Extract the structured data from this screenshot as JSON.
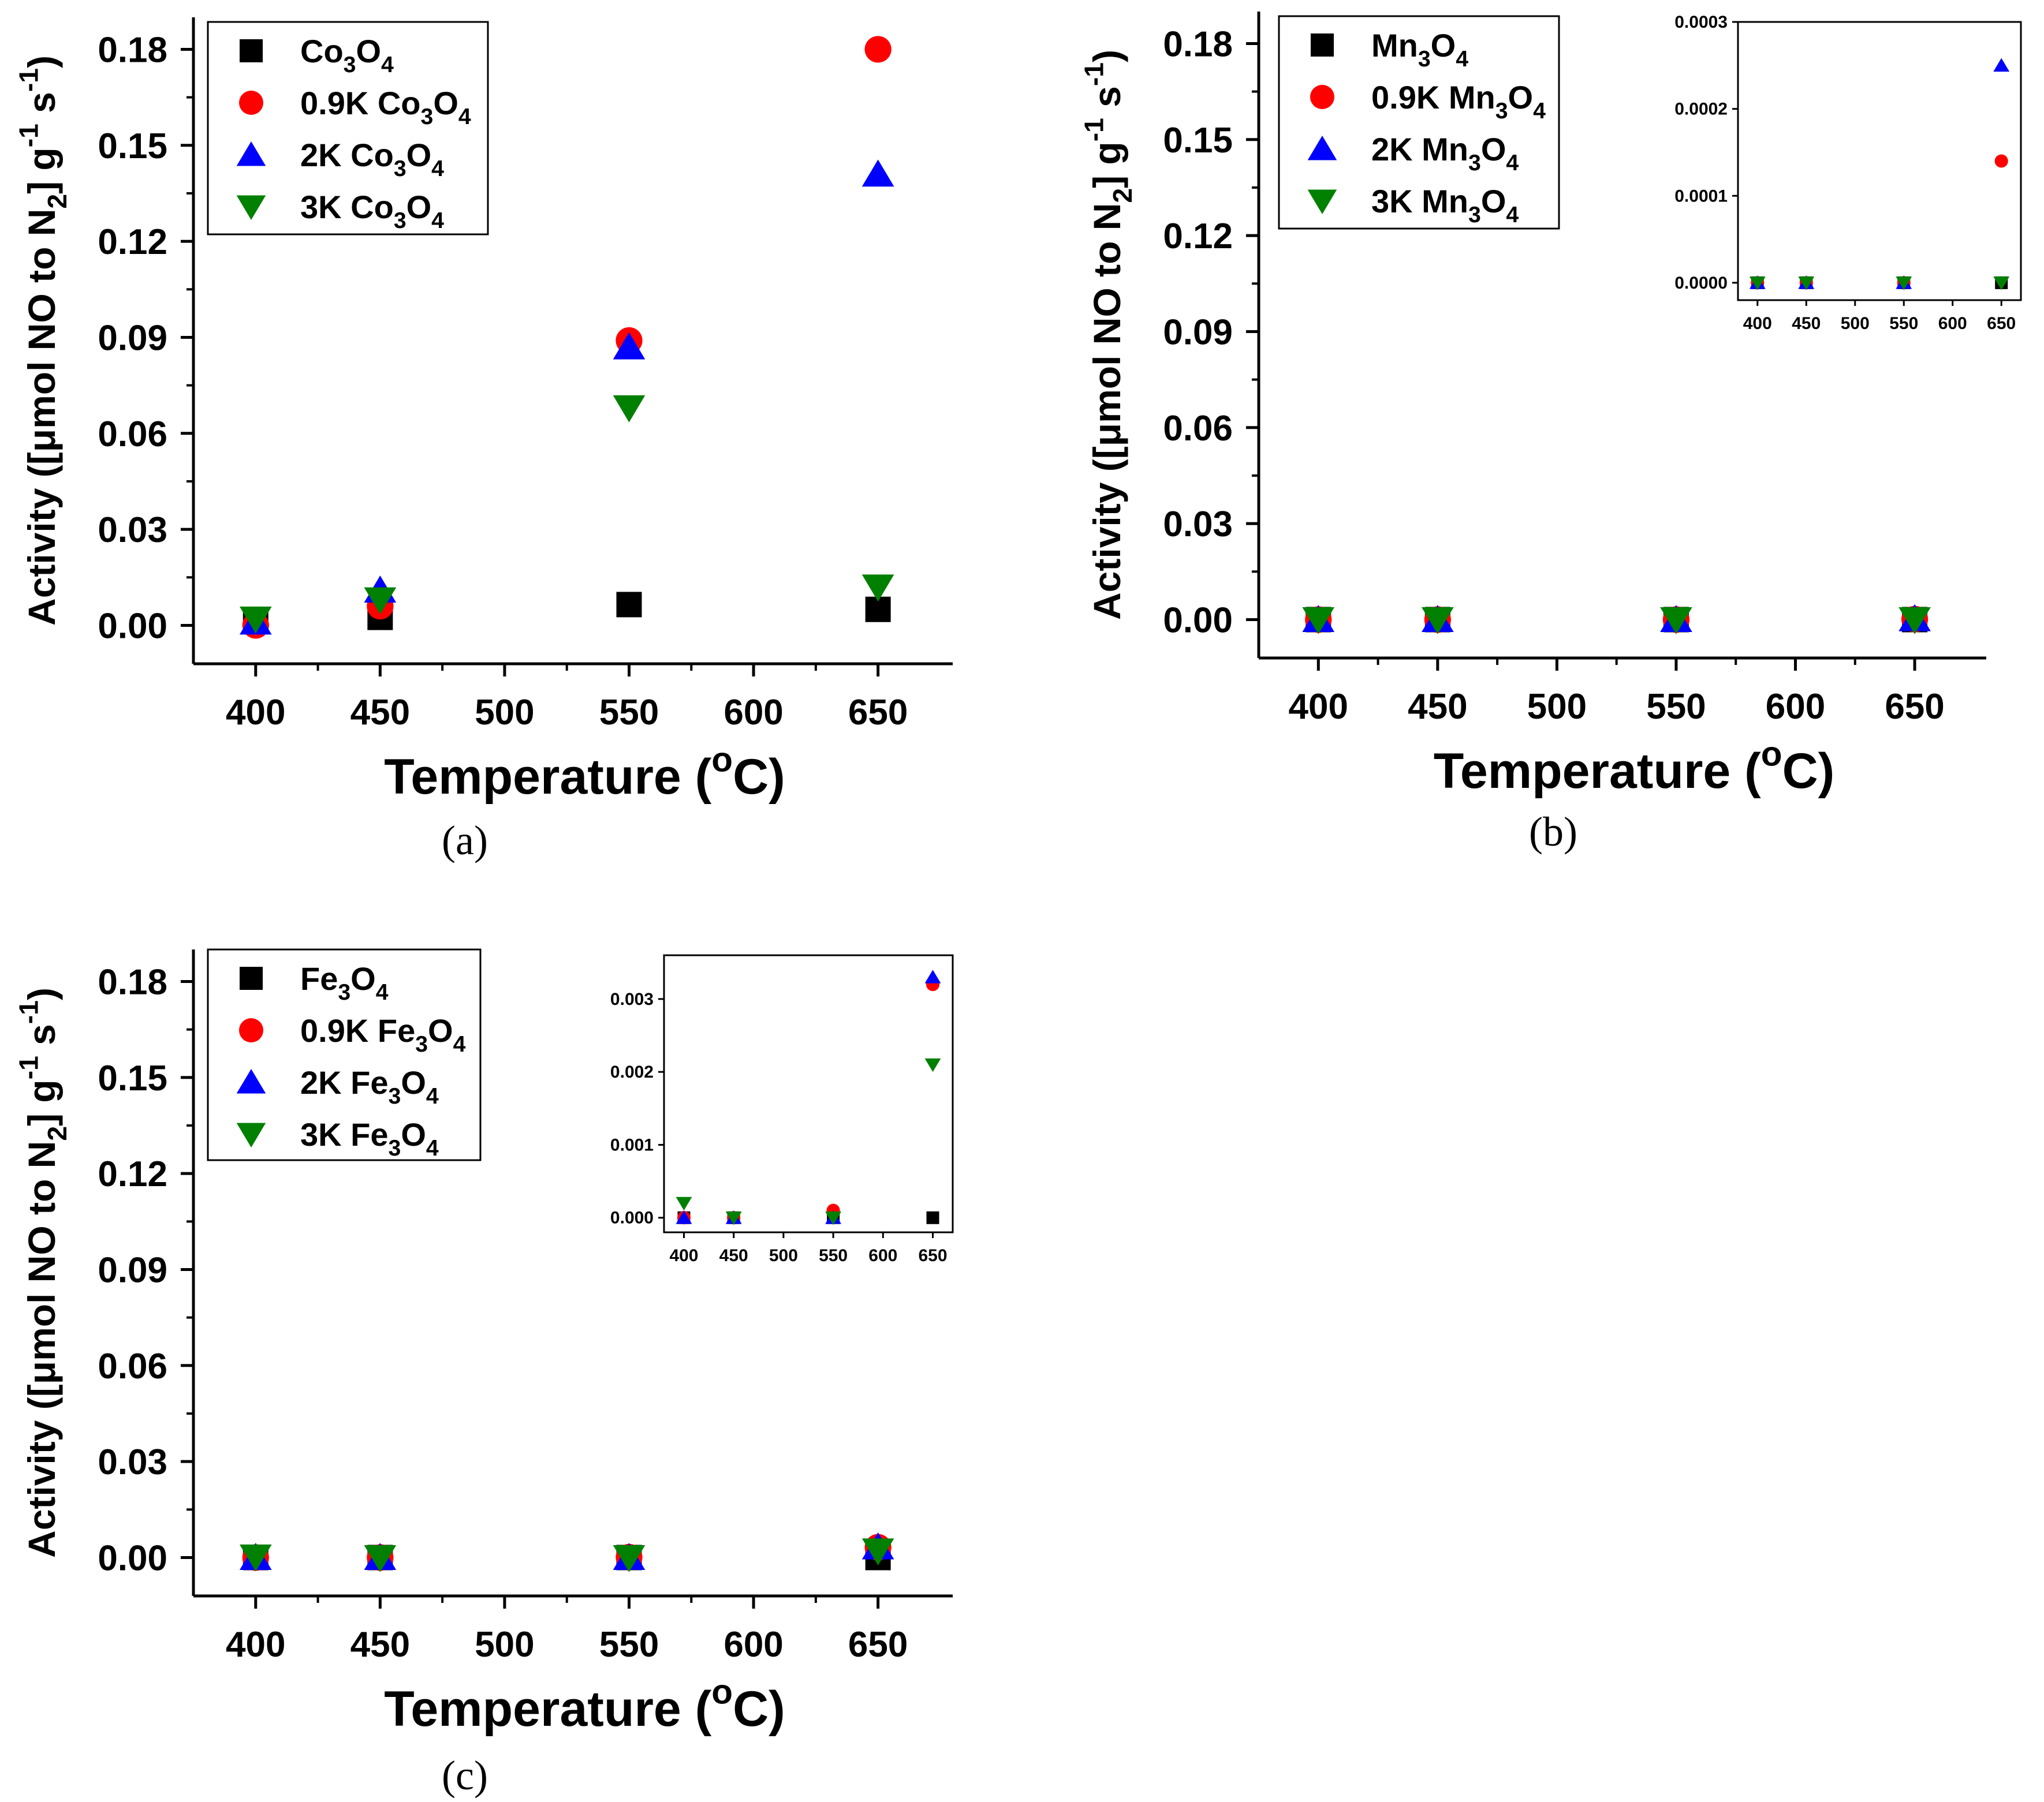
{
  "chart_data": [
    {
      "type": "scatter",
      "panel_label": "(a)",
      "xlabel": "Temperature (oC)",
      "ylabel": "Activity ([μmol NO to N2] g-1 s-1)",
      "xlim": [
        375,
        680
      ],
      "ylim": [
        -0.012,
        0.19
      ],
      "xticks": [
        400,
        450,
        500,
        550,
        600,
        650
      ],
      "yticks": [
        0.0,
        0.03,
        0.06,
        0.09,
        0.12,
        0.15,
        0.18
      ],
      "legend_position": "top-left",
      "grid": false,
      "series": [
        {
          "name": "Co3O4",
          "marker": "square",
          "color": "#000000",
          "x": [
            400,
            450,
            550,
            650
          ],
          "y": [
            0.0015,
            0.0025,
            0.0065,
            0.005
          ]
        },
        {
          "name": "0.9K Co3O4",
          "marker": "circle",
          "color": "#ff0000",
          "x": [
            400,
            450,
            550,
            650
          ],
          "y": [
            0.0,
            0.006,
            0.089,
            0.18
          ]
        },
        {
          "name": "2K Co3O4",
          "marker": "triangle-up",
          "color": "#0000ff",
          "x": [
            400,
            450,
            550,
            650
          ],
          "y": [
            0.001,
            0.011,
            0.087,
            0.141
          ]
        },
        {
          "name": "3K Co3O4",
          "marker": "triangle-down",
          "color": "#008000",
          "x": [
            400,
            450,
            550,
            650
          ],
          "y": [
            0.002,
            0.008,
            0.068,
            0.012
          ]
        }
      ]
    },
    {
      "type": "scatter",
      "panel_label": "(b)",
      "xlabel": "Temperature (oC)",
      "ylabel": "Activity ([μmol NO to N2] g-1 s-1)",
      "xlim": [
        375,
        680
      ],
      "ylim": [
        -0.012,
        0.19
      ],
      "xticks": [
        400,
        450,
        500,
        550,
        600,
        650
      ],
      "yticks": [
        0.0,
        0.03,
        0.06,
        0.09,
        0.12,
        0.15,
        0.18
      ],
      "legend_position": "top-left",
      "grid": false,
      "series": [
        {
          "name": "Mn3O4",
          "marker": "square",
          "color": "#000000",
          "x": [
            400,
            450,
            550,
            650
          ],
          "y": [
            0.0,
            0.0,
            0.0,
            0.0
          ]
        },
        {
          "name": "0.9K Mn3O4",
          "marker": "circle",
          "color": "#ff0000",
          "x": [
            400,
            450,
            550,
            650
          ],
          "y": [
            0.0,
            0.0,
            0.0,
            0.00014
          ]
        },
        {
          "name": "2K Mn3O4",
          "marker": "triangle-up",
          "color": "#0000ff",
          "x": [
            400,
            450,
            550,
            650
          ],
          "y": [
            0.0,
            0.0,
            0.0,
            0.00025
          ]
        },
        {
          "name": "3K Mn3O4",
          "marker": "triangle-down",
          "color": "#008000",
          "x": [
            400,
            450,
            550,
            650
          ],
          "y": [
            0.0,
            0.0,
            0.0,
            0.0
          ]
        }
      ],
      "inset": {
        "xlim": [
          380,
          670
        ],
        "ylim": [
          -2e-05,
          0.0003
        ],
        "xticks": [
          400,
          450,
          500,
          550,
          600,
          650
        ],
        "yticks": [
          "0.0000",
          "0.0001",
          "0.0002",
          "0.0003"
        ]
      }
    },
    {
      "type": "scatter",
      "panel_label": "(c)",
      "xlabel": "Temperature (oC)",
      "ylabel": "Activity ([μmol NO to N2] g-1 s-1)",
      "xlim": [
        375,
        680
      ],
      "ylim": [
        -0.012,
        0.19
      ],
      "xticks": [
        400,
        450,
        500,
        550,
        600,
        650
      ],
      "yticks": [
        0.0,
        0.03,
        0.06,
        0.09,
        0.12,
        0.15,
        0.18
      ],
      "legend_position": "top-left",
      "grid": false,
      "series": [
        {
          "name": "Fe3O4",
          "marker": "square",
          "color": "#000000",
          "x": [
            400,
            450,
            550,
            650
          ],
          "y": [
            0.0,
            0.0,
            0.0,
            0.0
          ]
        },
        {
          "name": "0.9K Fe3O4",
          "marker": "circle",
          "color": "#ff0000",
          "x": [
            400,
            450,
            550,
            650
          ],
          "y": [
            0.0,
            0.0,
            0.0001,
            0.0032
          ]
        },
        {
          "name": "2K Fe3O4",
          "marker": "triangle-up",
          "color": "#0000ff",
          "x": [
            400,
            450,
            550,
            650
          ],
          "y": [
            0.0,
            0.0,
            0.0,
            0.0033
          ]
        },
        {
          "name": "3K Fe3O4",
          "marker": "triangle-down",
          "color": "#008000",
          "x": [
            400,
            450,
            550,
            650
          ],
          "y": [
            0.0002,
            0.0,
            0.0,
            0.0021
          ]
        }
      ],
      "inset": {
        "xlim": [
          380,
          670
        ],
        "ylim": [
          -0.0002,
          0.0036
        ],
        "xticks": [
          400,
          450,
          500,
          550,
          600,
          650
        ],
        "yticks": [
          "0.000",
          "0.001",
          "0.002",
          "0.003"
        ]
      }
    }
  ]
}
